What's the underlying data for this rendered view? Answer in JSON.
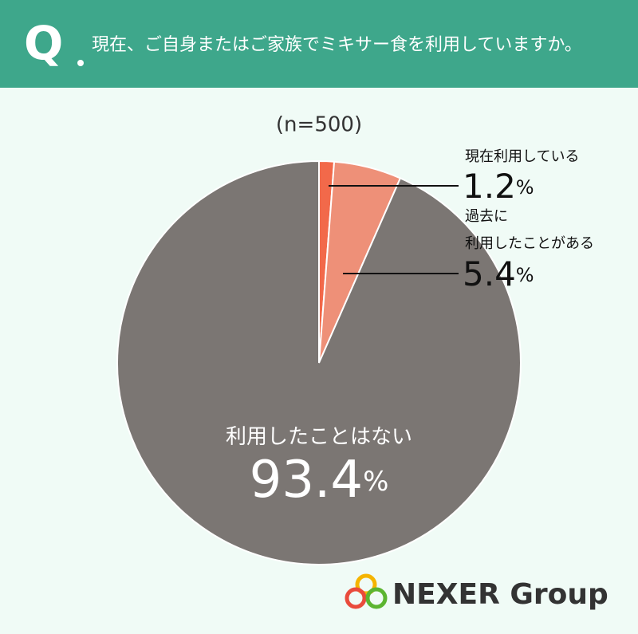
{
  "header": {
    "mark": "Q",
    "question": "現在、ご自身またはご家族でミキサー食を利用していますか。"
  },
  "chart_data": {
    "type": "pie",
    "subtitle": "(n=500)",
    "categories": [
      "現在利用している",
      "過去に\n利用したことがある",
      "利用したことはない"
    ],
    "values": [
      1.2,
      5.4,
      93.4
    ],
    "value_labels": [
      "1.2%",
      "5.4%",
      "93.4%"
    ],
    "colors": [
      "#f2694a",
      "#ee9078",
      "#7b7673"
    ]
  },
  "logo": "NEXER Group"
}
